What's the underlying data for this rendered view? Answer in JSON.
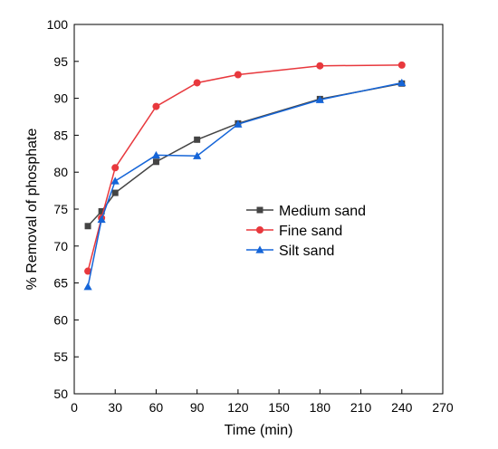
{
  "chart_data": {
    "type": "line",
    "xlabel": "Time (min)",
    "ylabel": "% Removal of phosphate",
    "xlim": [
      0,
      270
    ],
    "ylim": [
      50,
      100
    ],
    "x_ticks": [
      0,
      30,
      60,
      90,
      120,
      150,
      180,
      210,
      240,
      270
    ],
    "y_ticks": [
      50,
      55,
      60,
      65,
      70,
      75,
      80,
      85,
      90,
      95,
      100
    ],
    "x": [
      10,
      20,
      30,
      60,
      90,
      120,
      180,
      240
    ],
    "grid": false,
    "legend_position": "center-right",
    "series": [
      {
        "name": "Medium sand",
        "color": "#444444",
        "marker": "square",
        "values": [
          72.7,
          74.7,
          77.2,
          81.4,
          84.4,
          86.6,
          89.9,
          92.0
        ]
      },
      {
        "name": "Fine sand",
        "color": "#e8383d",
        "marker": "circle",
        "values": [
          66.6,
          73.8,
          80.6,
          88.9,
          92.1,
          93.2,
          94.4,
          94.5
        ]
      },
      {
        "name": "Silt sand",
        "color": "#1565d8",
        "marker": "triangle",
        "values": [
          64.5,
          73.6,
          78.8,
          82.3,
          82.2,
          86.5,
          89.8,
          92.1
        ]
      }
    ]
  }
}
